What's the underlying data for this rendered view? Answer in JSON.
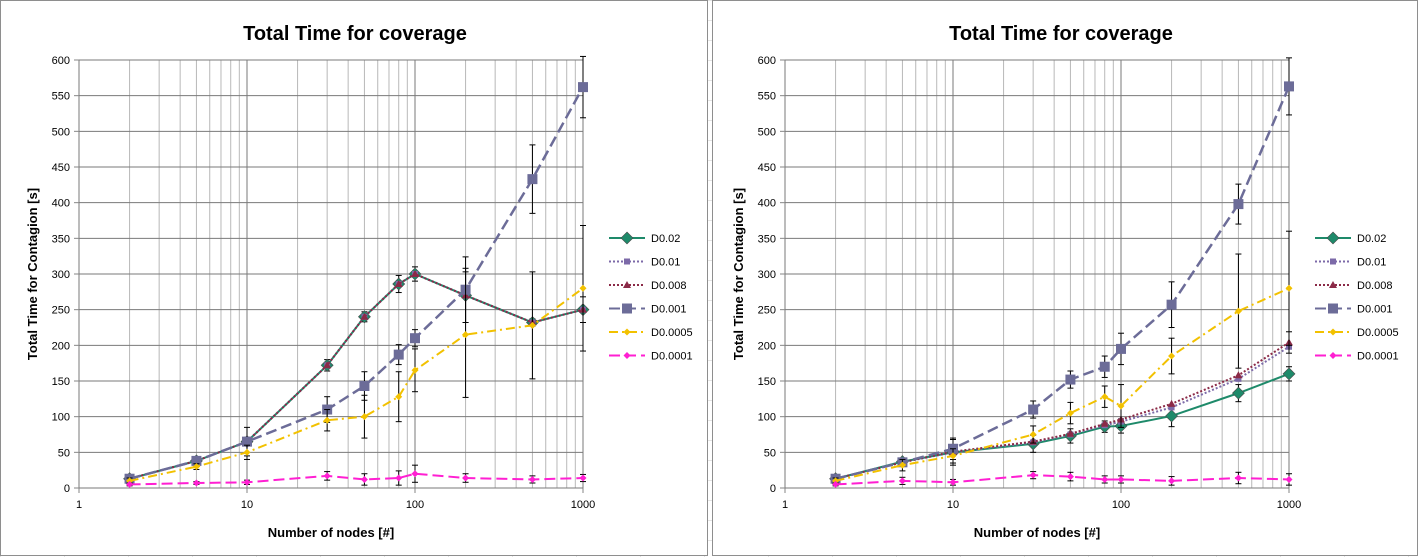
{
  "chart_data": [
    {
      "type": "line",
      "title": "Total Time for coverage",
      "xlabel": "Number of nodes [#]",
      "ylabel": "Total Time for Contagion [s]",
      "xscale": "log",
      "xlim": [
        1,
        1000
      ],
      "ylim": [
        0,
        600
      ],
      "xticks": [
        "1",
        "10",
        "100",
        "1000"
      ],
      "yticks": [
        "0",
        "50",
        "100",
        "150",
        "200",
        "250",
        "300",
        "350",
        "400",
        "450",
        "500",
        "550",
        "600"
      ],
      "grid": true,
      "legend_position": "right",
      "x": [
        2,
        5,
        10,
        30,
        50,
        80,
        100,
        200,
        500,
        1000
      ],
      "series": [
        {
          "name": "D0.02",
          "color": "#1e8a6a",
          "marker": "diamond",
          "dash": "solid",
          "values": [
            13,
            38,
            65,
            172,
            240,
            286,
            300,
            270,
            232,
            250
          ],
          "errors": [
            4,
            5,
            6,
            8,
            7,
            12,
            10,
            38,
            5,
            18
          ]
        },
        {
          "name": "D0.01",
          "color": "#7c6aa8",
          "marker": "square-small",
          "dash": "dotted",
          "values": [
            13,
            38,
            65,
            172,
            240,
            286,
            300,
            270,
            232,
            250
          ],
          "errors": [
            0,
            0,
            0,
            0,
            0,
            0,
            0,
            0,
            0,
            0
          ]
        },
        {
          "name": "D0.008",
          "color": "#8b2a47",
          "marker": "triangle",
          "dash": "dotted",
          "values": [
            13,
            38,
            65,
            172,
            240,
            286,
            300,
            270,
            232,
            250
          ],
          "errors": [
            0,
            0,
            0,
            0,
            0,
            0,
            0,
            0,
            0,
            0
          ]
        },
        {
          "name": "D0.001",
          "color": "#6c6c98",
          "marker": "square",
          "dash": "long-dash",
          "values": [
            13,
            38,
            65,
            110,
            143,
            187,
            210,
            278,
            433,
            562
          ],
          "errors": [
            3,
            5,
            20,
            18,
            20,
            14,
            12,
            46,
            48,
            43
          ]
        },
        {
          "name": "D0.0005",
          "color": "#f2c100",
          "marker": "diamond-small",
          "dash": "dash-dot",
          "values": [
            10,
            30,
            50,
            95,
            100,
            128,
            165,
            215,
            228,
            280
          ],
          "errors": [
            4,
            4,
            10,
            15,
            30,
            35,
            30,
            88,
            75,
            88
          ]
        },
        {
          "name": "D0.0001",
          "color": "#ff1fd2",
          "marker": "diamond-small",
          "dash": "long-dash",
          "values": [
            5,
            7,
            8,
            17,
            12,
            14,
            20,
            14,
            12,
            14
          ],
          "errors": [
            2,
            2,
            3,
            6,
            8,
            10,
            12,
            6,
            5,
            5
          ]
        }
      ]
    },
    {
      "type": "line",
      "title": "Total Time for coverage",
      "xlabel": "Number of nodes [#]",
      "ylabel": "Total Time for Contagion [s]",
      "xscale": "log",
      "xlim": [
        1,
        1000
      ],
      "ylim": [
        0,
        600
      ],
      "xticks": [
        "1",
        "10",
        "100",
        "1000"
      ],
      "yticks": [
        "0",
        "50",
        "100",
        "150",
        "200",
        "250",
        "300",
        "350",
        "400",
        "450",
        "500",
        "550",
        "600"
      ],
      "grid": true,
      "legend_position": "right",
      "x": [
        2,
        5,
        10,
        30,
        50,
        80,
        100,
        200,
        500,
        1000
      ],
      "series": [
        {
          "name": "D0.02",
          "color": "#1e8a6a",
          "marker": "diamond",
          "dash": "solid",
          "values": [
            13,
            37,
            50,
            62,
            73,
            86,
            87,
            101,
            133,
            160
          ],
          "errors": [
            3,
            5,
            18,
            12,
            10,
            8,
            10,
            15,
            12,
            10
          ]
        },
        {
          "name": "D0.01",
          "color": "#7c6aa8",
          "marker": "square-small",
          "dash": "dotted",
          "values": [
            13,
            36,
            50,
            64,
            75,
            88,
            93,
            113,
            153,
            198
          ],
          "errors": [
            0,
            0,
            0,
            0,
            0,
            0,
            0,
            0,
            0,
            0
          ]
        },
        {
          "name": "D0.008",
          "color": "#8b2a47",
          "marker": "triangle",
          "dash": "dotted",
          "values": [
            13,
            36,
            51,
            65,
            76,
            90,
            96,
            118,
            158,
            204
          ],
          "errors": [
            0,
            0,
            0,
            0,
            0,
            0,
            0,
            0,
            0,
            15
          ]
        },
        {
          "name": "D0.001",
          "color": "#6c6c98",
          "marker": "square",
          "dash": "long-dash",
          "values": [
            13,
            36,
            55,
            110,
            152,
            170,
            195,
            257,
            398,
            563
          ],
          "errors": [
            3,
            5,
            15,
            12,
            12,
            15,
            22,
            32,
            28,
            40
          ]
        },
        {
          "name": "D0.0005",
          "color": "#f2c100",
          "marker": "diamond-small",
          "dash": "dash-dot",
          "values": [
            10,
            32,
            45,
            75,
            105,
            128,
            115,
            185,
            248,
            280
          ],
          "errors": [
            4,
            8,
            10,
            12,
            15,
            15,
            30,
            25,
            80,
            80
          ]
        },
        {
          "name": "D0.0001",
          "color": "#ff1fd2",
          "marker": "diamond-small",
          "dash": "long-dash",
          "values": [
            5,
            10,
            8,
            18,
            16,
            12,
            12,
            10,
            14,
            12
          ],
          "errors": [
            2,
            5,
            4,
            5,
            6,
            5,
            5,
            6,
            8,
            8
          ]
        }
      ]
    }
  ]
}
